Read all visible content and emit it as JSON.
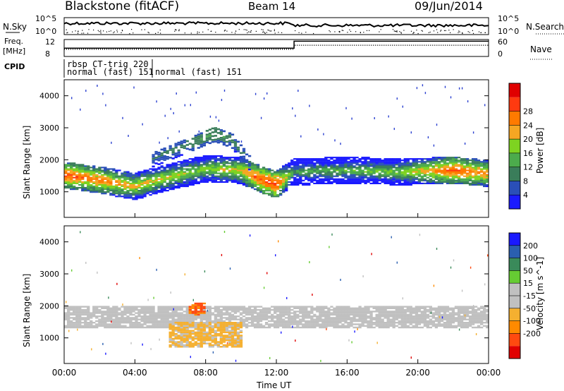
{
  "header": {
    "station": "Blackstone (fitACF)",
    "beam": "Beam 14",
    "date": "09/Jun/2014"
  },
  "noise_panel": {
    "left_label": "N.Sky",
    "right_label": "N.Search",
    "left_ticks": [
      "10^5",
      "10^0"
    ],
    "right_ticks": [
      "10^5",
      "10^0"
    ]
  },
  "freq_panel": {
    "left_label_line1": "Freq.",
    "left_label_line2": "[MHz]",
    "left_ticks": [
      "12",
      "8"
    ],
    "right_label": "Nave",
    "right_ticks": [
      "60",
      "0"
    ]
  },
  "cpid_panel": {
    "label": "CPID",
    "segments": [
      {
        "line1": "rbsp CT-trig 220",
        "line2": "normal (fast) 151"
      },
      {
        "line1": "",
        "line2": "normal (fast) 151"
      }
    ]
  },
  "colors": {
    "power_scale": [
      "#1a1aff",
      "#2a4fb8",
      "#3a7d5a",
      "#4cab4c",
      "#7ed321",
      "#f5a623",
      "#ff7a00",
      "#ff3a10",
      "#e00000"
    ],
    "velocity_scale": [
      "#e00000",
      "#ff4a10",
      "#ff8a00",
      "#f5b030",
      "#c0c0c0",
      "#c0c0c0",
      "#66cc33",
      "#3a8a5a",
      "#2a5fb0",
      "#1a1aff"
    ]
  },
  "chart_data": [
    {
      "type": "heatmap",
      "panel": "power",
      "ylabel": "Slant Range [km]",
      "xlabel": "",
      "ylim": [
        200,
        4500
      ],
      "yticks": [
        "1000",
        "2000",
        "3000",
        "4000"
      ],
      "xlim_hours": [
        0,
        24
      ],
      "colorbar": {
        "label": "Power [dB]",
        "ticks": [
          "4",
          "8",
          "12",
          "16",
          "20",
          "24",
          "28"
        ],
        "range": [
          0,
          32
        ]
      },
      "bands": [
        {
          "name": "main echo",
          "points_hours": [
            0,
            2,
            4,
            6,
            8,
            10,
            11,
            12,
            13,
            16,
            19,
            22,
            24
          ],
          "range_km": [
            1500,
            1350,
            1150,
            1450,
            1700,
            1650,
            1400,
            1200,
            1600,
            1650,
            1600,
            1650,
            1550
          ],
          "power_db": [
            26,
            24,
            20,
            18,
            16,
            20,
            26,
            28,
            12,
            14,
            16,
            26,
            22
          ]
        },
        {
          "name": "upper arc",
          "points_hours": [
            5,
            7,
            8.5,
            9.5,
            10.5
          ],
          "range_km": [
            2000,
            2450,
            2800,
            2600,
            1900
          ],
          "power_db": [
            8,
            10,
            12,
            10,
            8
          ]
        }
      ]
    },
    {
      "type": "heatmap",
      "panel": "velocity",
      "ylabel": "Slant Range [km]",
      "xlabel": "Time UT",
      "ylim": [
        200,
        4500
      ],
      "yticks": [
        "1000",
        "2000",
        "3000",
        "4000"
      ],
      "xlim_hours": [
        0,
        24
      ],
      "xticks": [
        "00:00",
        "04:00",
        "08:00",
        "12:00",
        "16:00",
        "20:00",
        "00:00"
      ],
      "colorbar": {
        "label": "Velocity [m s^-1]",
        "ticks": [
          "200",
          "100",
          "50",
          "15",
          "-15",
          "-50",
          "-100",
          "-200"
        ],
        "range": [
          -250,
          250
        ]
      },
      "regions": [
        {
          "name": "ground scatter band",
          "hours": [
            0,
            24
          ],
          "range_km": [
            1300,
            2000
          ],
          "velocity": 0
        },
        {
          "name": "away flow",
          "hours": [
            6,
            10
          ],
          "range_km": [
            700,
            1500
          ],
          "velocity": -60
        },
        {
          "name": "strong away",
          "hours": [
            7,
            8
          ],
          "range_km": [
            1700,
            2100
          ],
          "velocity": -150
        }
      ]
    }
  ]
}
